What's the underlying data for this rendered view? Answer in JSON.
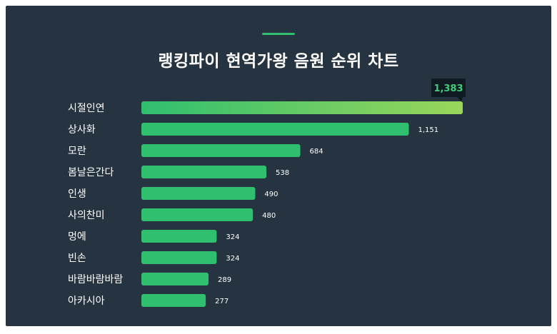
{
  "title": "랭킹파이 현역가왕 음원 순위 차트",
  "colors": {
    "background": "#263340",
    "bar": "#2fbf6f",
    "bar_top_start": "#2fbf6f",
    "bar_top_end": "#9ad65a",
    "tooltip_bg": "#0f1a22",
    "tooltip_text": "#3ecf7c",
    "accent": "#2fbf6f"
  },
  "chart_data": {
    "type": "bar",
    "orientation": "horizontal",
    "title": "랭킹파이 현역가왕 음원 순위 차트",
    "categories": [
      "시절인연",
      "상사화",
      "모란",
      "봄날은간다",
      "인생",
      "사의찬미",
      "멍에",
      "빈손",
      "바람바람바람",
      "아카시아"
    ],
    "values": [
      1383,
      1151,
      684,
      538,
      490,
      480,
      324,
      324,
      289,
      277
    ],
    "value_labels": [
      "1,383",
      "1,151",
      "684",
      "538",
      "490",
      "480",
      "324",
      "324",
      "289",
      "277"
    ],
    "xlim": [
      0,
      1383
    ],
    "grid": false,
    "legend": "none",
    "highlight_index": 0
  }
}
